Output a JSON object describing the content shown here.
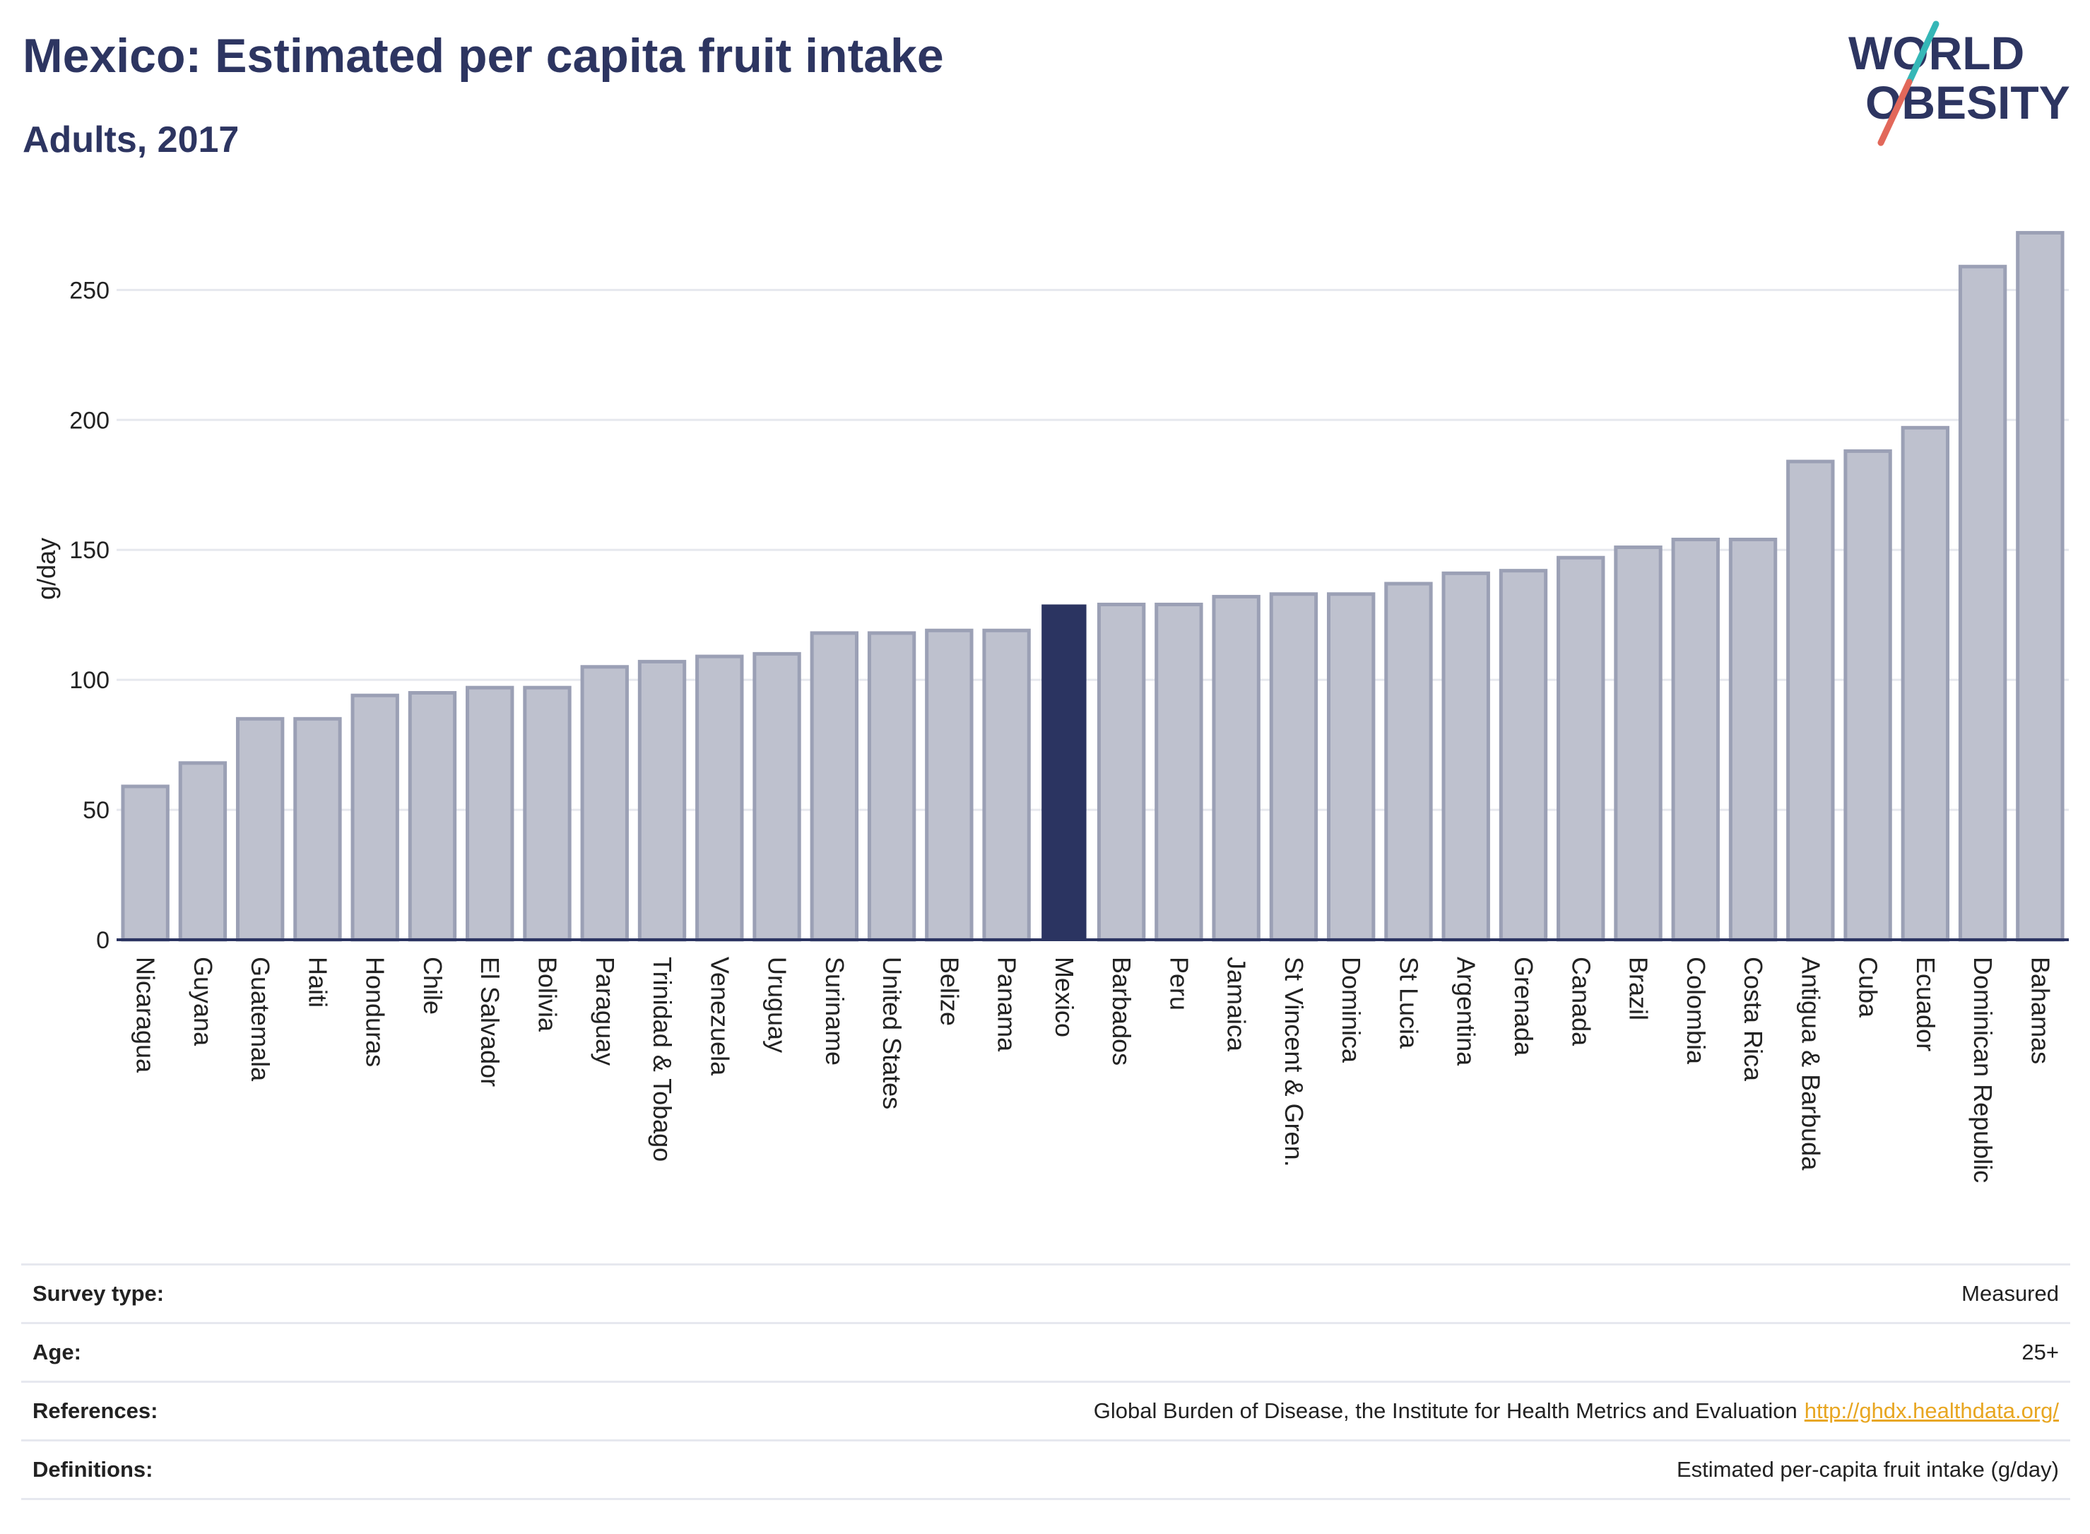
{
  "header": {
    "title": "Mexico: Estimated per capita fruit intake",
    "subtitle": "Adults, 2017"
  },
  "logo": {
    "line1": "WORLD",
    "line2": "OBESITY"
  },
  "colors": {
    "highlight": "#2b3461",
    "bar": "#bec1ce",
    "bar_border": "#9ba0b5",
    "grid": "#e6e8ee",
    "text": "#222222",
    "logo_navy": "#2d3561",
    "logo_teal": "#35b7b7",
    "logo_coral": "#e2685a",
    "link": "#e8a621"
  },
  "chart_data": {
    "type": "bar",
    "ylabel": "g/day",
    "xlabel": "",
    "ylim": [
      0,
      280
    ],
    "yticks": [
      0,
      50,
      100,
      150,
      200,
      250
    ],
    "grid": true,
    "highlight": "Mexico",
    "categories": [
      "Nicaragua",
      "Guyana",
      "Guatemala",
      "Haiti",
      "Honduras",
      "Chile",
      "El Salvador",
      "Bolivia",
      "Paraguay",
      "Trinidad & Tobago",
      "Venezuela",
      "Uruguay",
      "Suriname",
      "United States",
      "Belize",
      "Panama",
      "Mexico",
      "Barbados",
      "Peru",
      "Jamaica",
      "St Vincent & Gren.",
      "Dominica",
      "St Lucia",
      "Argentina",
      "Grenada",
      "Canada",
      "Brazil",
      "Colombia",
      "Costa Rica",
      "Antigua & Barbuda",
      "Cuba",
      "Ecuador",
      "Dominican Republic",
      "Bahamas"
    ],
    "values": [
      59,
      68,
      85,
      85,
      94,
      95,
      97,
      97,
      105,
      107,
      109,
      110,
      118,
      118,
      119,
      119,
      129,
      129,
      129,
      132,
      133,
      133,
      137,
      141,
      142,
      147,
      151,
      154,
      154,
      184,
      188,
      197,
      259,
      272
    ]
  },
  "info": {
    "rows": [
      {
        "label": "Survey type:",
        "value": "Measured",
        "link": ""
      },
      {
        "label": "Age:",
        "value": "25+",
        "link": ""
      },
      {
        "label": "References:",
        "value": "Global Burden of Disease, the Institute for Health Metrics and Evaluation",
        "link": "http://ghdx.healthdata.org/"
      },
      {
        "label": "Definitions:",
        "value": "Estimated per-capita fruit intake (g/day)",
        "link": ""
      }
    ]
  }
}
